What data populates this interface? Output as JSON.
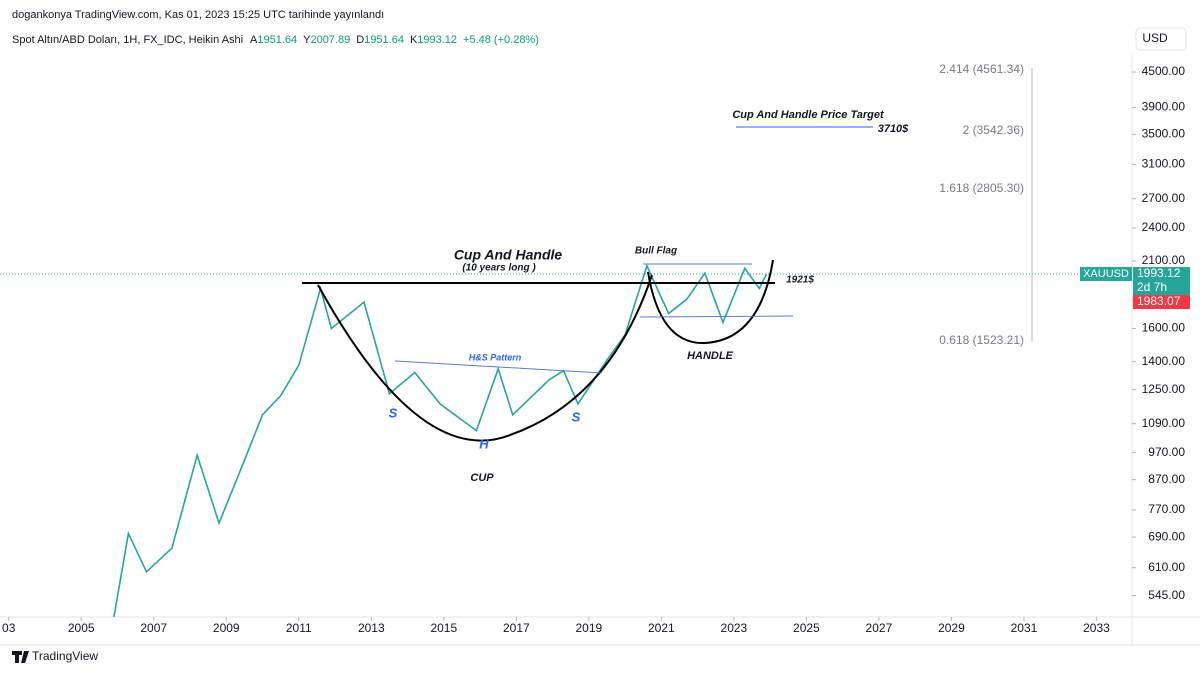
{
  "header": {
    "published": "dogankonya TradingView.com, Kas 01, 2023 15:25 UTC tarihinde yayınlandı",
    "symbol": "Spot Altın/ABD Doları, 1H, FX_IDC, Heikin Ashi",
    "ohlc": [
      {
        "label": "A",
        "value": "1951.64"
      },
      {
        "label": "Y",
        "value": "2007.89"
      },
      {
        "label": "D",
        "value": "1951.64"
      },
      {
        "label": "K",
        "value": "1993.12"
      }
    ],
    "change": "+5.48 (+0.28%)",
    "currency": "USD"
  },
  "chart_data": {
    "type": "line",
    "log_scale": true,
    "grid": false,
    "xlim": [
      2002.76,
      2033.98
    ],
    "xticks": [
      {
        "value": 2003,
        "label": "03"
      },
      2005,
      2007,
      2009,
      2011,
      2013,
      2015,
      2017,
      2019,
      2021,
      2023,
      2025,
      2027,
      2029,
      2031,
      2033
    ],
    "ylim": [
      500,
      4820
    ],
    "yticks": [
      {
        "value": 4500,
        "label": "4500.00"
      },
      {
        "value": 3900,
        "label": "3900.00"
      },
      {
        "value": 3500,
        "label": "3500.00"
      },
      {
        "value": 3100,
        "label": "3100.00"
      },
      {
        "value": 2700,
        "label": "2700.00"
      },
      {
        "value": 2400,
        "label": "2400.00"
      },
      {
        "value": 2100,
        "label": "2100.00"
      },
      {
        "value": 1600,
        "label": "1600.00"
      },
      {
        "value": 1400,
        "label": "1400.00"
      },
      {
        "value": 1250,
        "label": "1250.00"
      },
      {
        "value": 1090,
        "label": "1090.00"
      },
      {
        "value": 970,
        "label": "970.00"
      },
      {
        "value": 870,
        "label": "870.00"
      },
      {
        "value": 770,
        "label": "770.00"
      },
      {
        "value": 690,
        "label": "690.00"
      },
      {
        "value": 610,
        "label": "610.00"
      },
      {
        "value": 545,
        "label": "545.00"
      }
    ],
    "series": [
      {
        "name": "XAUUSD",
        "color": "#26a69a",
        "x": [
          2005.9,
          2006.3,
          2006.8,
          2007.5,
          2008.2,
          2008.8,
          2009.5,
          2010.0,
          2010.5,
          2011.0,
          2011.6,
          2011.9,
          2012.8,
          2013.5,
          2014.2,
          2014.9,
          2015.9,
          2016.5,
          2016.9,
          2017.9,
          2018.3,
          2018.7,
          2019.5,
          2020.0,
          2020.6,
          2021.2,
          2021.7,
          2022.2,
          2022.7,
          2023.3,
          2023.7,
          2023.9
        ],
        "values": [
          500,
          700,
          600,
          660,
          960,
          730,
          940,
          1130,
          1220,
          1380,
          1880,
          1600,
          1780,
          1230,
          1340,
          1180,
          1060,
          1360,
          1130,
          1300,
          1350,
          1180,
          1410,
          1560,
          2060,
          1700,
          1800,
          2000,
          1640,
          2040,
          1880,
          1993.12
        ]
      }
    ],
    "last_price": 1993.12,
    "last_price_label": "XAUUSD",
    "countdown": "2d 7h",
    "prev_price": "1983.07",
    "fib_levels": [
      "2.414 (4561.34)",
      "2 (3542.36)",
      "1.618 (2805.30)",
      "0.618 (1523.21)"
    ],
    "annotations": {
      "cup_handle": "Cup And Handle",
      "years": "(10 years long )",
      "bull_flag": "Bull Flag",
      "level": "1921$",
      "hs": "H&S Pattern",
      "s1": "S",
      "h": "H",
      "s2": "S",
      "cup": "CUP",
      "handle": "HANDLE",
      "target_title": "Cup And Handle Price Target",
      "target": "3710$"
    }
  },
  "footer": {
    "brand": "TradingView"
  }
}
